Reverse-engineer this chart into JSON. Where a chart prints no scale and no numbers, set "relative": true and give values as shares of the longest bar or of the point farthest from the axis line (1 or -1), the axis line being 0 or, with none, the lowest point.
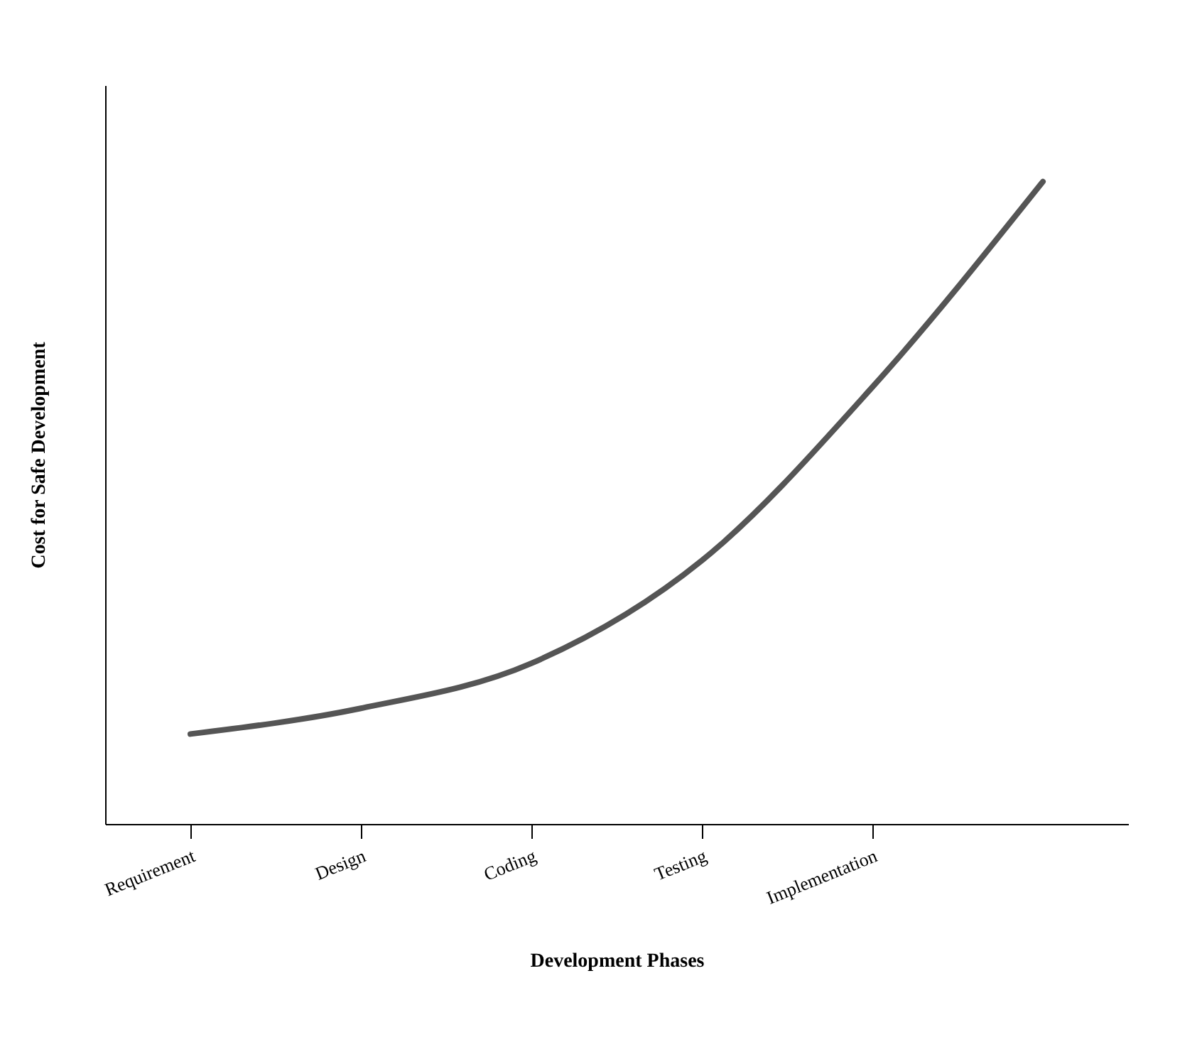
{
  "chart_data": {
    "type": "line",
    "relative": true,
    "categories": [
      "Requirement",
      "Design",
      "Coding",
      "Testing",
      "Implementation",
      null
    ],
    "series": [
      {
        "color": "#555555",
        "values": [
          0.14,
          0.18,
          0.25,
          0.41,
          0.68,
          1
        ]
      }
    ],
    "xlabel": "Development Phases",
    "ylabel": "Cost for Safe Development",
    "grid": false,
    "legend": false,
    "marker": "none",
    "line_style": "solid"
  }
}
